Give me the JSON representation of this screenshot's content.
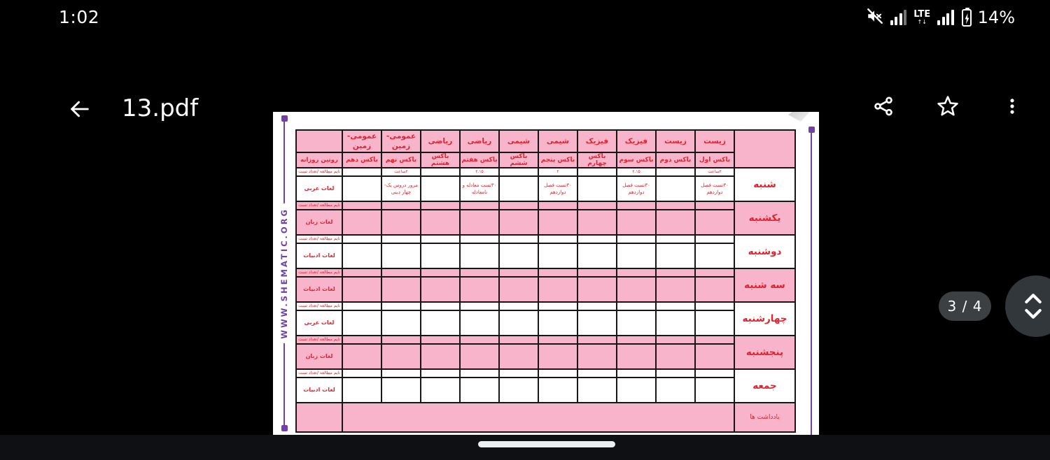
{
  "status_bar": {
    "time": "1:02",
    "network_label": "LTE",
    "battery_percent": "14%"
  },
  "app_bar": {
    "title": "13.pdf"
  },
  "pdf_viewer": {
    "page_indicator": "3 / 4",
    "watermark": "WWW.SHEMATIC.ORG",
    "colors": {
      "pink": "#f8b4ca",
      "red": "#e3222d",
      "purple": "#6f42a3",
      "table_border": "#161616"
    },
    "table": {
      "routine_column": {
        "header": "روتین روزانه",
        "meta_label": "تایم مطالعه /تعداد تست"
      },
      "columns": [
        {
          "subject": "زیست",
          "box": "باکس اول"
        },
        {
          "subject": "زیست",
          "box": "باکس دوم"
        },
        {
          "subject": "فیزیک",
          "box": "باکس سوم"
        },
        {
          "subject": "فیزیک",
          "box": "باکس چهارم"
        },
        {
          "subject": "شیمی",
          "box": "باکس پنجم"
        },
        {
          "subject": "شیمی",
          "box": "باکس ششم"
        },
        {
          "subject": "ریاضی",
          "box": "باکس هفتم"
        },
        {
          "subject": "ریاضی",
          "box": "باکس هشتم"
        },
        {
          "subject": "عمومی-زمین",
          "box": "باکس نهم"
        },
        {
          "subject": "عمومی- زمین",
          "box": "باکس دهم"
        }
      ],
      "days": [
        {
          "name": "شنبه",
          "highlight": false,
          "routine_task": "لغات عربی",
          "meta": [
            "۲ساعت",
            "",
            "۲.۱۵",
            "",
            "۲",
            "",
            "۲.۱۵",
            "",
            "۲ساعت",
            ""
          ],
          "tasks": [
            "۳۰تست فصل دوازدهم",
            "",
            "۳۰تست فصل دوازدهم",
            "",
            "۳۰تست فصل دوازدهم",
            "",
            "۳۰تست معادله و نامعادله",
            "",
            "مرور دروس یک-چهار دینی",
            ""
          ]
        },
        {
          "name": "یکشنبه",
          "highlight": true,
          "routine_task": "لغات زبان",
          "meta": [
            "",
            "",
            "",
            "",
            "",
            "",
            "",
            "",
            "",
            ""
          ],
          "tasks": [
            "",
            "",
            "",
            "",
            "",
            "",
            "",
            "",
            "",
            ""
          ]
        },
        {
          "name": "دوشنبه",
          "highlight": false,
          "routine_task": "لغات ادبیات",
          "meta": [
            "",
            "",
            "",
            "",
            "",
            "",
            "",
            "",
            "",
            ""
          ],
          "tasks": [
            "",
            "",
            "",
            "",
            "",
            "",
            "",
            "",
            "",
            ""
          ]
        },
        {
          "name": "سه شنبه",
          "highlight": true,
          "routine_task": "لغات ادبیات",
          "meta": [
            "",
            "",
            "",
            "",
            "",
            "",
            "",
            "",
            "",
            ""
          ],
          "tasks": [
            "",
            "",
            "",
            "",
            "",
            "",
            "",
            "",
            "",
            ""
          ]
        },
        {
          "name": "چهارشنبه",
          "highlight": false,
          "routine_task": "لغات عربی",
          "meta": [
            "",
            "",
            "",
            "",
            "",
            "",
            "",
            "",
            "",
            ""
          ],
          "tasks": [
            "",
            "",
            "",
            "",
            "",
            "",
            "",
            "",
            "",
            ""
          ]
        },
        {
          "name": "پنجشنبه",
          "highlight": true,
          "routine_task": "لغات زبان",
          "meta": [
            "",
            "",
            "",
            "",
            "",
            "",
            "",
            "",
            "",
            ""
          ],
          "tasks": [
            "",
            "",
            "",
            "",
            "",
            "",
            "",
            "",
            "",
            ""
          ]
        },
        {
          "name": "جمعه",
          "highlight": false,
          "routine_task": "لغات ادبیات",
          "meta": [
            "",
            "",
            "",
            "",
            "",
            "",
            "",
            "",
            "",
            ""
          ],
          "tasks": [
            "",
            "",
            "",
            "",
            "",
            "",
            "",
            "",
            "",
            ""
          ]
        }
      ],
      "notes_label": "یادداشت ها"
    }
  }
}
